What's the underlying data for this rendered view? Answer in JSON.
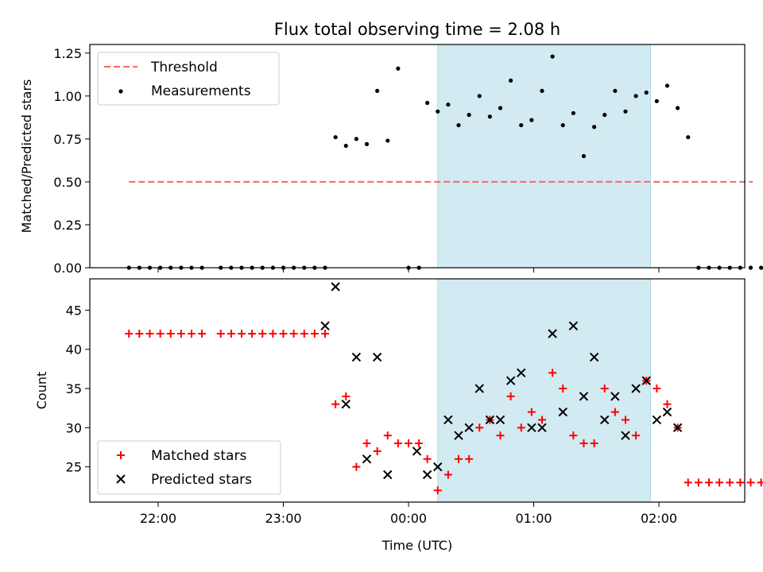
{
  "chart_data": [
    {
      "type": "scatter",
      "title": "Flux total observing time = 2.08 h",
      "ylabel": "Matched/Predicted stars",
      "ylim": [
        0,
        1.3
      ],
      "yticks": [
        "0.00",
        "0.25",
        "0.50",
        "0.75",
        "1.00",
        "1.25"
      ],
      "shaded_span": {
        "start": "00:14",
        "end": "01:56",
        "color": "#add8e6"
      },
      "legend": {
        "location": "upper-left",
        "entries": [
          "Threshold",
          "Measurements"
        ]
      },
      "threshold": {
        "name": "Threshold",
        "value": 0.5,
        "x_range": [
          "21:46",
          "02:45"
        ],
        "color": "#ff6666"
      },
      "series": [
        {
          "name": "Measurements",
          "color": "#000000",
          "points": [
            [
              "21:46",
              0
            ],
            [
              "21:51",
              0
            ],
            [
              "21:56",
              0
            ],
            [
              "22:01",
              0
            ],
            [
              "22:06",
              0
            ],
            [
              "22:11",
              0
            ],
            [
              "22:16",
              0
            ],
            [
              "22:21",
              0
            ],
            [
              "22:30",
              0
            ],
            [
              "22:35",
              0
            ],
            [
              "22:40",
              0
            ],
            [
              "22:45",
              0
            ],
            [
              "22:50",
              0
            ],
            [
              "22:55",
              0
            ],
            [
              "23:00",
              0
            ],
            [
              "23:05",
              0
            ],
            [
              "23:10",
              0
            ],
            [
              "23:15",
              0
            ],
            [
              "23:20",
              0
            ],
            [
              "23:25",
              0.76
            ],
            [
              "23:30",
              0.71
            ],
            [
              "23:35",
              0.75
            ],
            [
              "23:40",
              0.72
            ],
            [
              "23:45",
              1.03
            ],
            [
              "23:50",
              0.74
            ],
            [
              "23:55",
              1.16
            ],
            [
              "00:00",
              0
            ],
            [
              "00:05",
              0
            ],
            [
              "00:09",
              0.96
            ],
            [
              "00:14",
              0.91
            ],
            [
              "00:19",
              0.95
            ],
            [
              "00:24",
              0.83
            ],
            [
              "00:29",
              0.89
            ],
            [
              "00:34",
              1.0
            ],
            [
              "00:39",
              0.88
            ],
            [
              "00:44",
              0.93
            ],
            [
              "00:49",
              1.09
            ],
            [
              "00:54",
              0.83
            ],
            [
              "00:59",
              0.86
            ],
            [
              "01:04",
              1.03
            ],
            [
              "01:09",
              1.23
            ],
            [
              "01:14",
              0.83
            ],
            [
              "01:19",
              0.9
            ],
            [
              "01:24",
              0.65
            ],
            [
              "01:29",
              0.82
            ],
            [
              "01:34",
              0.89
            ],
            [
              "01:39",
              1.03
            ],
            [
              "01:44",
              0.91
            ],
            [
              "01:49",
              1.0
            ],
            [
              "01:54",
              1.02
            ],
            [
              "01:59",
              0.97
            ],
            [
              "02:04",
              1.06
            ],
            [
              "02:09",
              0.93
            ],
            [
              "02:14",
              0.76
            ],
            [
              "02:19",
              0
            ],
            [
              "02:24",
              0
            ],
            [
              "02:29",
              0
            ],
            [
              "02:34",
              0
            ],
            [
              "02:39",
              0
            ],
            [
              "02:44",
              0
            ],
            [
              "02:49",
              0
            ],
            [
              "02:54",
              0
            ]
          ]
        }
      ]
    },
    {
      "type": "scatter",
      "xlabel": "Time (UTC)",
      "ylabel": "Count",
      "ylim": [
        20.5,
        49
      ],
      "yticks": [
        "25",
        "30",
        "35",
        "40",
        "45"
      ],
      "xticks": [
        "22:00",
        "23:00",
        "00:00",
        "01:00",
        "02:00"
      ],
      "shaded_span": {
        "start": "00:14",
        "end": "01:56",
        "color": "#add8e6"
      },
      "legend": {
        "location": "lower-left",
        "entries": [
          "Matched stars",
          "Predicted stars"
        ]
      },
      "series": [
        {
          "name": "Matched stars",
          "marker": "+",
          "color": "#ff0000",
          "points": [
            [
              "21:46",
              42
            ],
            [
              "21:51",
              42
            ],
            [
              "21:56",
              42
            ],
            [
              "22:01",
              42
            ],
            [
              "22:06",
              42
            ],
            [
              "22:11",
              42
            ],
            [
              "22:16",
              42
            ],
            [
              "22:21",
              42
            ],
            [
              "22:30",
              42
            ],
            [
              "22:35",
              42
            ],
            [
              "22:40",
              42
            ],
            [
              "22:45",
              42
            ],
            [
              "22:50",
              42
            ],
            [
              "22:55",
              42
            ],
            [
              "23:00",
              42
            ],
            [
              "23:05",
              42
            ],
            [
              "23:10",
              42
            ],
            [
              "23:15",
              42
            ],
            [
              "23:20",
              42
            ],
            [
              "23:25",
              33
            ],
            [
              "23:30",
              34
            ],
            [
              "23:35",
              25
            ],
            [
              "23:40",
              28
            ],
            [
              "23:45",
              27
            ],
            [
              "23:50",
              29
            ],
            [
              "23:55",
              28
            ],
            [
              "00:00",
              28
            ],
            [
              "00:05",
              28
            ],
            [
              "00:09",
              26
            ],
            [
              "00:14",
              22
            ],
            [
              "00:19",
              24
            ],
            [
              "00:24",
              26
            ],
            [
              "00:29",
              26
            ],
            [
              "00:34",
              30
            ],
            [
              "00:39",
              31
            ],
            [
              "00:44",
              29
            ],
            [
              "00:49",
              34
            ],
            [
              "00:54",
              30
            ],
            [
              "00:59",
              32
            ],
            [
              "01:04",
              31
            ],
            [
              "01:09",
              37
            ],
            [
              "01:14",
              35
            ],
            [
              "01:19",
              29
            ],
            [
              "01:24",
              28
            ],
            [
              "01:29",
              28
            ],
            [
              "01:34",
              35
            ],
            [
              "01:39",
              32
            ],
            [
              "01:44",
              31
            ],
            [
              "01:49",
              29
            ],
            [
              "01:54",
              36
            ],
            [
              "01:59",
              35
            ],
            [
              "02:04",
              33
            ],
            [
              "02:09",
              30
            ],
            [
              "02:14",
              23
            ],
            [
              "02:19",
              23
            ],
            [
              "02:24",
              23
            ],
            [
              "02:29",
              23
            ],
            [
              "02:34",
              23
            ],
            [
              "02:39",
              23
            ],
            [
              "02:44",
              23
            ],
            [
              "02:49",
              23
            ],
            [
              "02:54",
              23
            ]
          ]
        },
        {
          "name": "Predicted stars",
          "marker": "x",
          "color": "#000000",
          "points": [
            [
              "23:20",
              43
            ],
            [
              "23:25",
              48
            ],
            [
              "23:30",
              33
            ],
            [
              "23:35",
              39
            ],
            [
              "23:40",
              26
            ],
            [
              "23:45",
              39
            ],
            [
              "23:50",
              24
            ],
            [
              "00:04",
              27
            ],
            [
              "00:09",
              24
            ],
            [
              "00:14",
              25
            ],
            [
              "00:19",
              31
            ],
            [
              "00:24",
              29
            ],
            [
              "00:29",
              30
            ],
            [
              "00:34",
              35
            ],
            [
              "00:39",
              31
            ],
            [
              "00:44",
              31
            ],
            [
              "00:49",
              36
            ],
            [
              "00:54",
              37
            ],
            [
              "00:59",
              30
            ],
            [
              "01:04",
              30
            ],
            [
              "01:09",
              42
            ],
            [
              "01:14",
              32
            ],
            [
              "01:19",
              43
            ],
            [
              "01:24",
              34
            ],
            [
              "01:29",
              39
            ],
            [
              "01:34",
              31
            ],
            [
              "01:39",
              34
            ],
            [
              "01:44",
              29
            ],
            [
              "01:49",
              35
            ],
            [
              "01:54",
              36
            ],
            [
              "01:59",
              31
            ],
            [
              "02:04",
              32
            ],
            [
              "02:09",
              30
            ]
          ]
        }
      ]
    }
  ]
}
